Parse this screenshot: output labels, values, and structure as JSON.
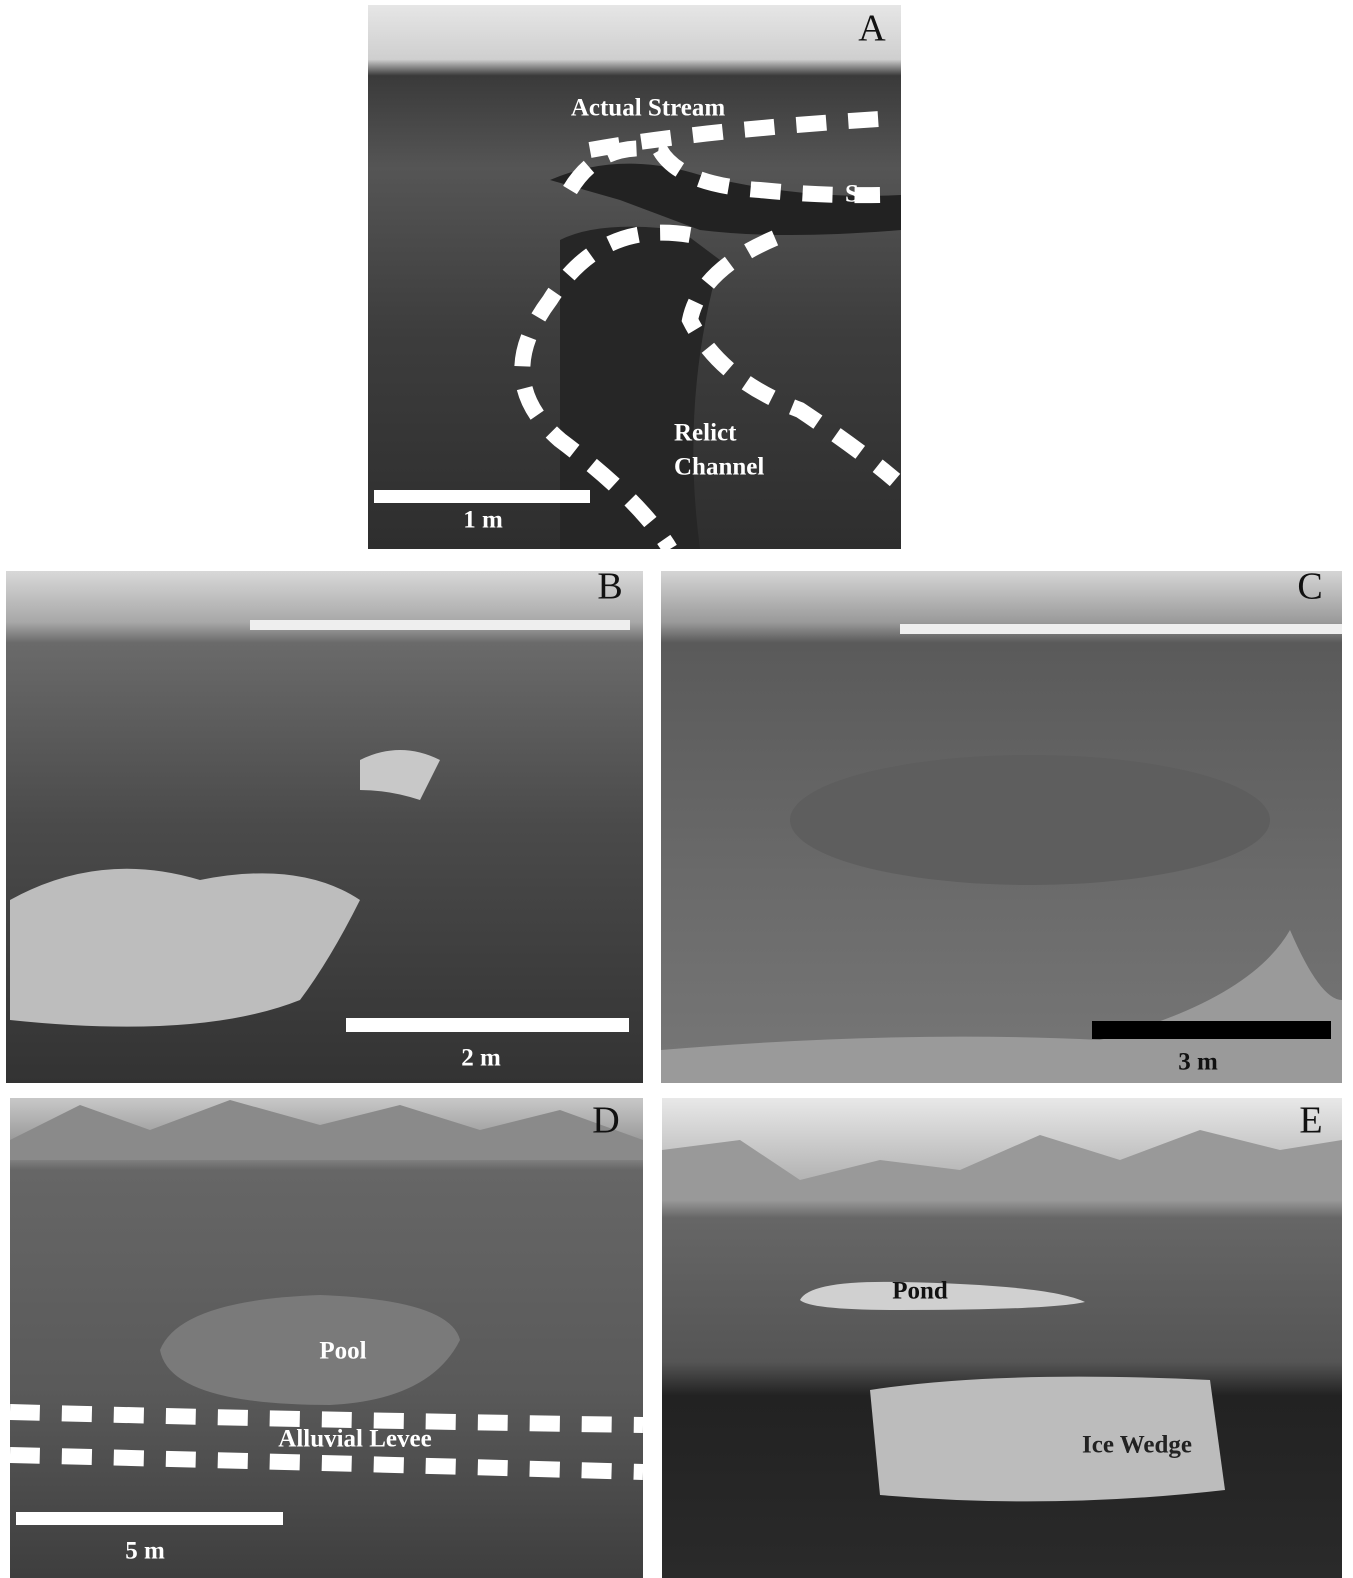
{
  "panels": [
    {
      "letter": "A",
      "labels": [
        "Actual Stream",
        "S"
      ],
      "relict_channel": [
        "Relict",
        "Channel"
      ],
      "scale_bar": "1 m"
    },
    {
      "letter": "B",
      "scale_bar": "2 m"
    },
    {
      "letter": "C",
      "scale_bar": "3 m"
    },
    {
      "letter": "D",
      "labels": [
        "Pool",
        "Alluvial Levee"
      ],
      "scale_bar": "5 m"
    },
    {
      "letter": "E",
      "labels": [
        "Pond",
        "Ice Wedge"
      ]
    }
  ]
}
